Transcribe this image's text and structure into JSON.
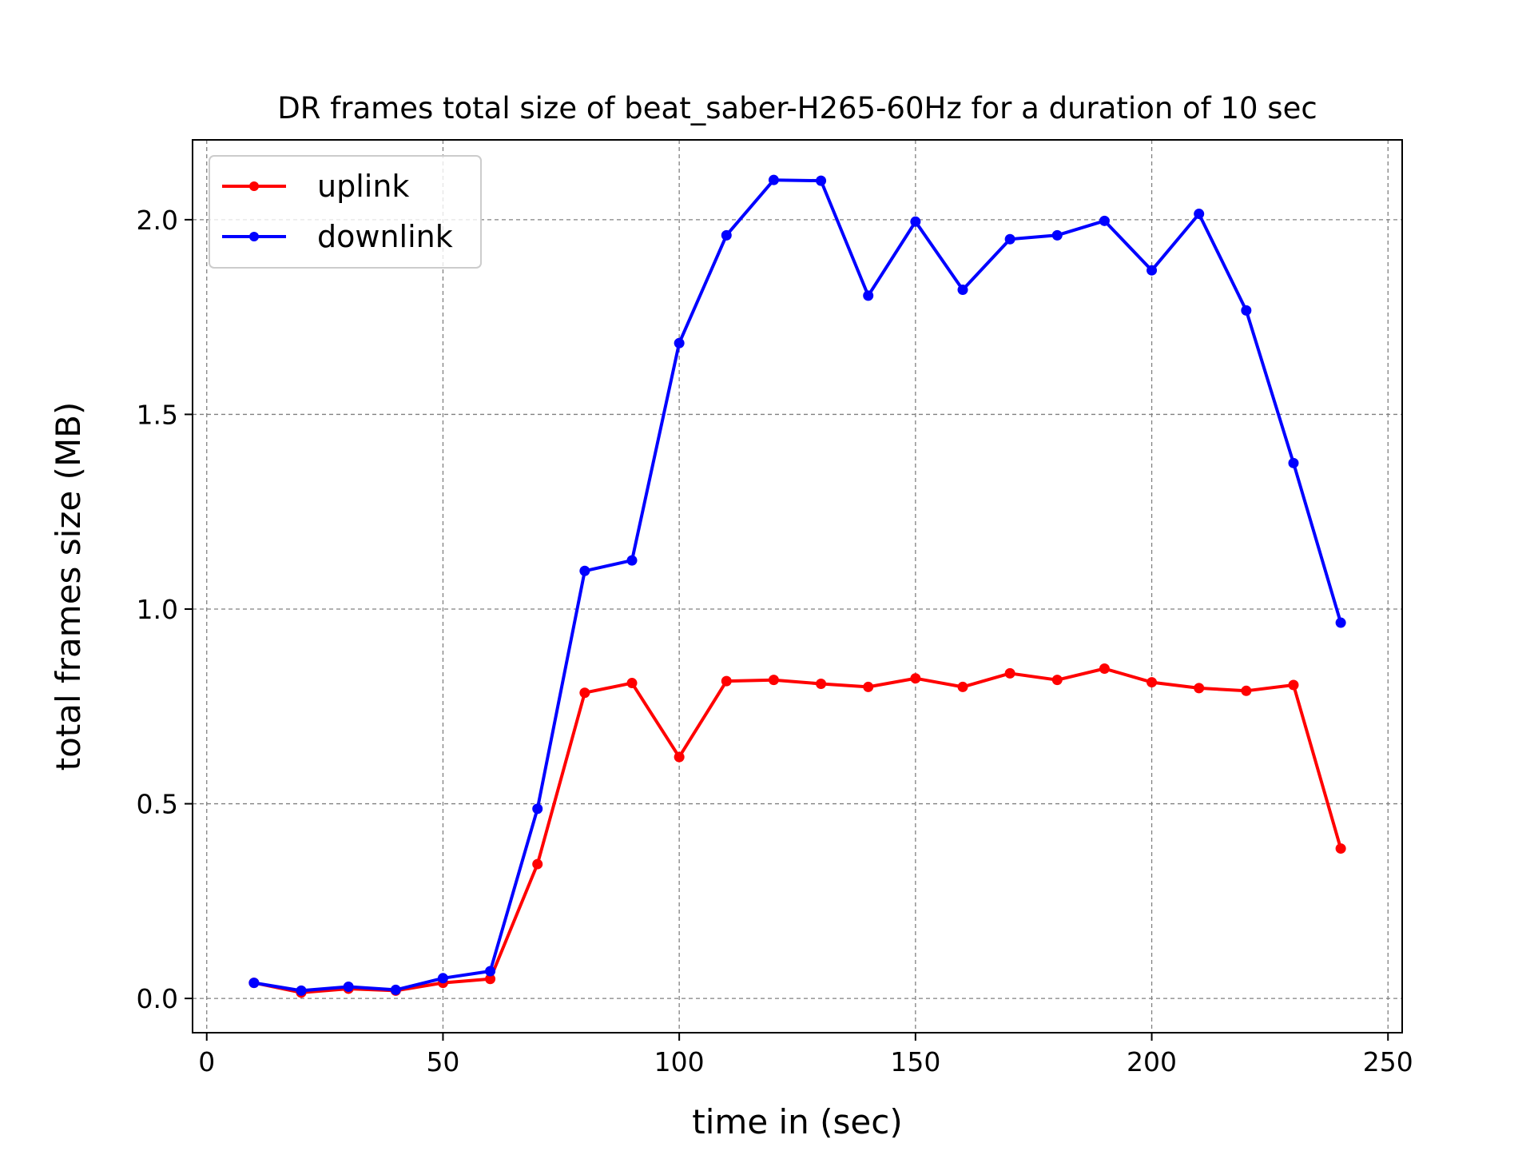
{
  "chart_data": {
    "type": "line",
    "title": "DR frames total size of beat_saber-H265-60Hz for a duration of 10 sec",
    "xlabel": "time in (sec)",
    "ylabel": "total frames size (MB)",
    "xlim": [
      -3,
      253
    ],
    "ylim": [
      -0.088,
      2.205
    ],
    "xticks": [
      0,
      50,
      100,
      150,
      200,
      250
    ],
    "yticks": [
      0.0,
      0.5,
      1.0,
      1.5,
      2.0
    ],
    "xtick_labels": [
      "0",
      "50",
      "100",
      "150",
      "200",
      "250"
    ],
    "ytick_labels": [
      "0.0",
      "0.5",
      "1.0",
      "1.5",
      "2.0"
    ],
    "grid": true,
    "legend_position": "top-left",
    "x": [
      10,
      20,
      30,
      40,
      50,
      60,
      70,
      80,
      90,
      100,
      110,
      120,
      130,
      140,
      150,
      160,
      170,
      180,
      190,
      200,
      210,
      220,
      230,
      240
    ],
    "series": [
      {
        "name": "uplink",
        "color": "#ff0000",
        "values": [
          0.04,
          0.015,
          0.025,
          0.02,
          0.04,
          0.05,
          0.345,
          0.785,
          0.81,
          0.62,
          0.815,
          0.818,
          0.808,
          0.8,
          0.822,
          0.8,
          0.835,
          0.818,
          0.847,
          0.812,
          0.797,
          0.79,
          0.805,
          0.385
        ]
      },
      {
        "name": "downlink",
        "color": "#0000ff",
        "values": [
          0.04,
          0.02,
          0.03,
          0.022,
          0.052,
          0.07,
          0.487,
          1.098,
          1.125,
          1.683,
          1.96,
          2.102,
          2.1,
          1.805,
          1.995,
          1.82,
          1.95,
          1.96,
          1.997,
          1.87,
          2.015,
          1.767,
          1.375,
          0.965
        ]
      }
    ]
  }
}
